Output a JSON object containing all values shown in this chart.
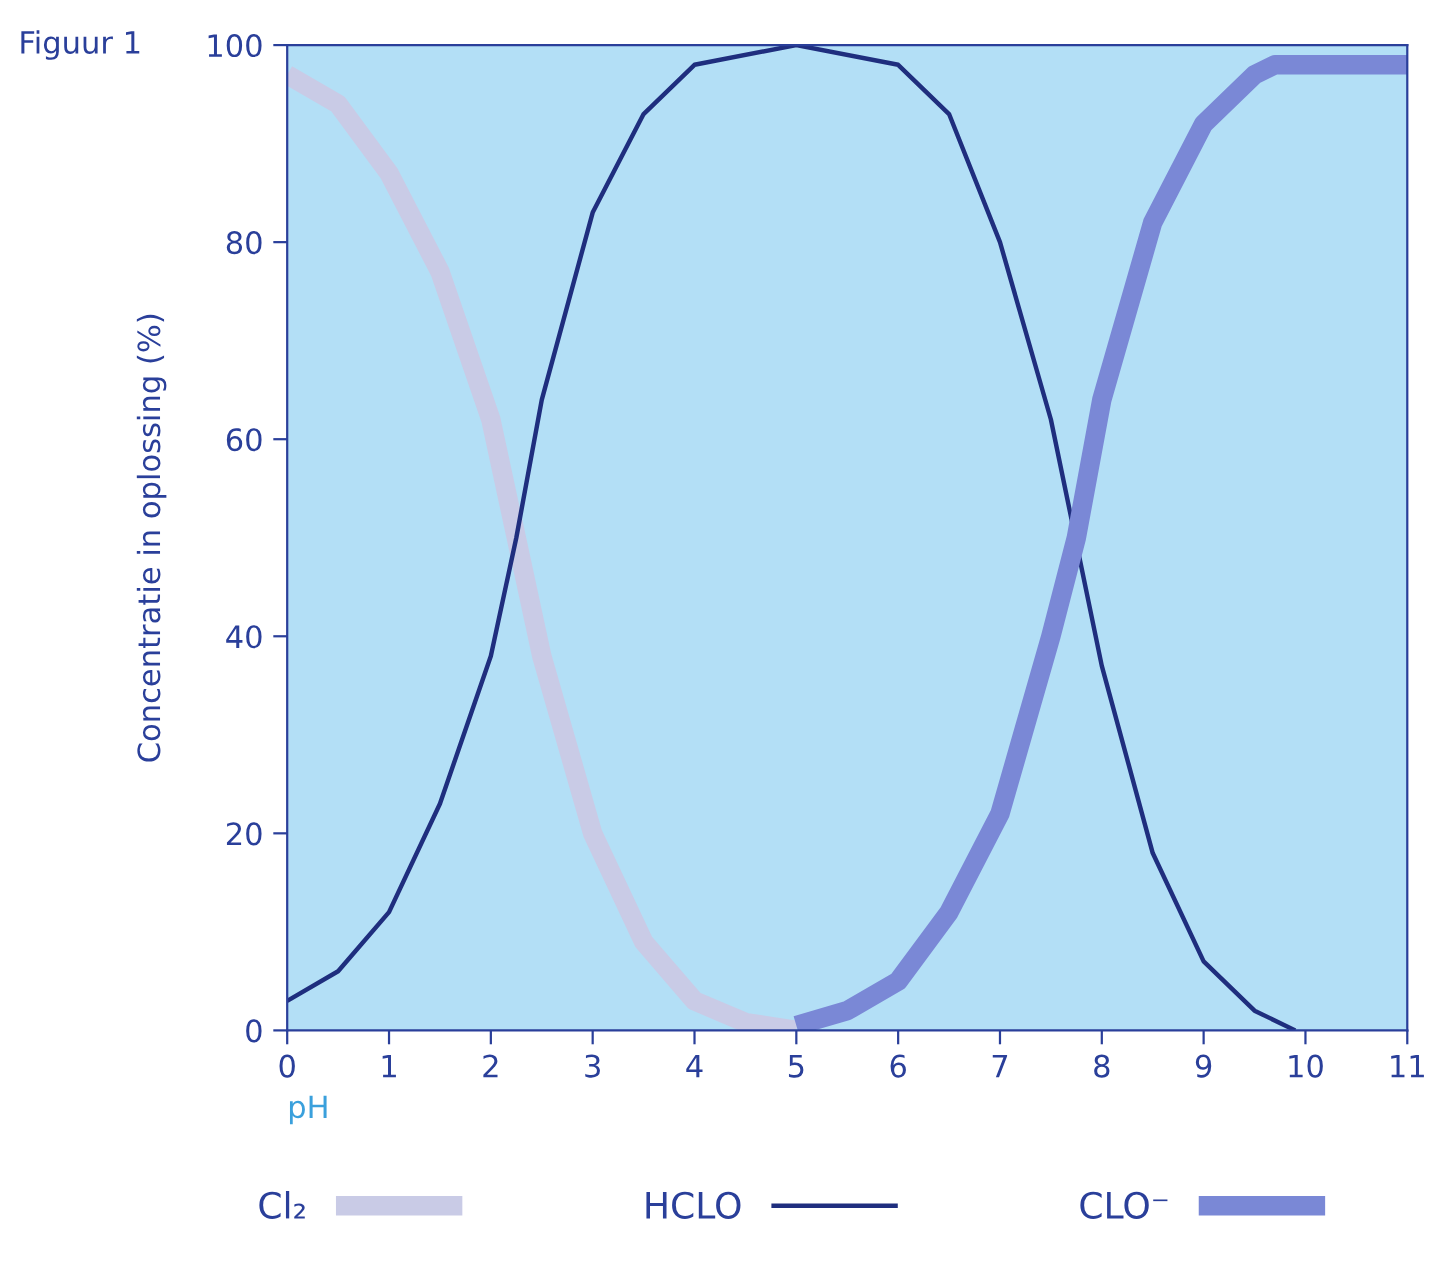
{
  "chart_data": {
    "type": "line",
    "xlabel": "pH",
    "ylabel": "Concentratie in oplossing (%)",
    "annotations": [
      "Figuur 1"
    ],
    "xlim": [
      0,
      11
    ],
    "xticks": [
      0,
      1,
      2,
      3,
      4,
      5,
      6,
      7,
      8,
      9,
      10,
      11
    ],
    "ylim": [
      0,
      100
    ],
    "yticks": [
      0,
      20,
      40,
      60,
      80,
      100
    ],
    "grid": false,
    "legend": "bottom",
    "marker": "none",
    "line_style": "solid",
    "series": [
      {
        "name": "Cl₂",
        "color": "#c9cbe6",
        "x": [
          0,
          0.5,
          1,
          1.5,
          2,
          2.25,
          2.5,
          3,
          3.5,
          4,
          4.5,
          5
        ],
        "values": [
          97,
          94,
          87,
          77,
          62,
          50,
          38,
          20,
          9,
          3,
          0.8,
          0
        ]
      },
      {
        "name": "HCLO",
        "color": "#1f2e7e",
        "x": [
          0,
          0.5,
          1,
          1.5,
          2,
          2.25,
          2.5,
          3,
          3.5,
          4,
          5,
          6,
          6.5,
          7,
          7.5,
          8,
          8.5,
          9,
          9.5,
          9.9
        ],
        "values": [
          3,
          6,
          12,
          23,
          38,
          50,
          64,
          83,
          93,
          98,
          100,
          98,
          93,
          80,
          62,
          37,
          18,
          7,
          2,
          0
        ]
      },
      {
        "name": "CLO⁻",
        "color": "#7a88d6",
        "x": [
          5,
          5.5,
          6,
          6.5,
          7,
          7.5,
          7.75,
          8,
          8.5,
          9,
          9.5,
          9.7,
          11
        ],
        "values": [
          0.5,
          2,
          5,
          12,
          22,
          40,
          50,
          64,
          82,
          92,
          97,
          98,
          98
        ]
      }
    ]
  }
}
